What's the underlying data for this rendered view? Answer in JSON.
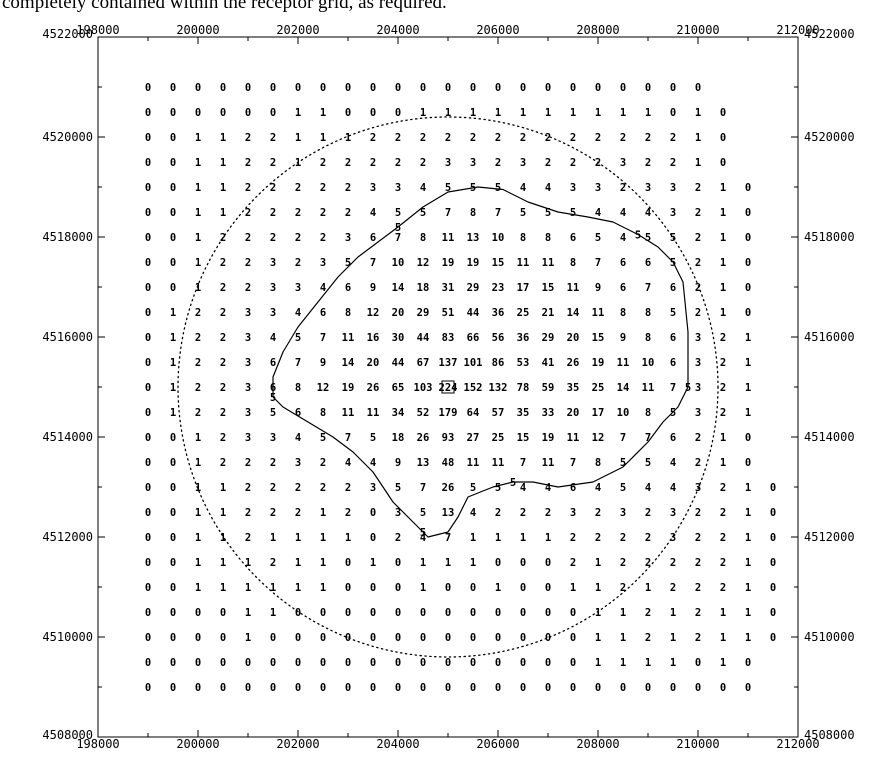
{
  "caption": "completely contained within the receptor grid, as required.",
  "chart_data": {
    "type": "heatmap",
    "title": "",
    "xlabel": "",
    "ylabel": "",
    "xlim": [
      198000,
      212000
    ],
    "ylim": [
      4508000,
      4522000
    ],
    "grid": false,
    "x_ticks": [
      198000,
      200000,
      202000,
      204000,
      206000,
      208000,
      210000,
      212000
    ],
    "x_tick_labels": [
      "198000",
      "200000",
      "202000",
      "204000",
      "206000",
      "208000",
      "210000",
      "212000"
    ],
    "y_ticks": [
      4508000,
      4510000,
      4512000,
      4514000,
      4516000,
      4518000,
      4520000,
      4522000
    ],
    "y_tick_labels": [
      "4508000",
      "4510000",
      "4512000",
      "4514000",
      "4516000",
      "4518000",
      "4520000",
      "4522000"
    ],
    "grid_x_start": 199000,
    "grid_y_start": 4521000,
    "grid_spacing": 500,
    "values": [
      [
        "0",
        "0",
        "0",
        "0",
        "0",
        "0",
        "0",
        "0",
        "0",
        "0",
        "0",
        "0",
        "0",
        "0",
        "0",
        "0",
        "0",
        "0",
        "0",
        "0",
        "0",
        "0",
        "0"
      ],
      [
        "0",
        "0",
        "0",
        "0",
        "0",
        "0",
        "1",
        "1",
        "0",
        "0",
        "0",
        "1",
        "1",
        "1",
        "1",
        "1",
        "1",
        "1",
        "1",
        "1",
        "1",
        "0",
        "1",
        "0"
      ],
      [
        "0",
        "0",
        "1",
        "1",
        "2",
        "2",
        "1",
        "1",
        "1",
        "2",
        "2",
        "2",
        "2",
        "2",
        "2",
        "2",
        "2",
        "2",
        "2",
        "2",
        "2",
        "2",
        "1",
        "0"
      ],
      [
        "0",
        "0",
        "1",
        "1",
        "2",
        "2",
        "1",
        "2",
        "2",
        "2",
        "2",
        "2",
        "3",
        "3",
        "2",
        "3",
        "2",
        "2",
        "2",
        "3",
        "2",
        "2",
        "1",
        "0"
      ],
      [
        "0",
        "0",
        "1",
        "1",
        "2",
        "2",
        "2",
        "2",
        "2",
        "3",
        "3",
        "4",
        "5",
        "5",
        "5",
        "4",
        "4",
        "3",
        "3",
        "2",
        "3",
        "3",
        "2",
        "1",
        "0"
      ],
      [
        "0",
        "0",
        "1",
        "1",
        "2",
        "2",
        "2",
        "2",
        "2",
        "4",
        "5",
        "5",
        "7",
        "8",
        "7",
        "5",
        "5",
        "5",
        "4",
        "4",
        "4",
        "3",
        "2",
        "1",
        "0"
      ],
      [
        "0",
        "0",
        "1",
        "2",
        "2",
        "2",
        "2",
        "2",
        "3",
        "6",
        "7",
        "8",
        "11",
        "13",
        "10",
        "8",
        "8",
        "6",
        "5",
        "4",
        "5",
        "5",
        "2",
        "1",
        "0"
      ],
      [
        "0",
        "0",
        "1",
        "2",
        "2",
        "3",
        "2",
        "3",
        "5",
        "7",
        "10",
        "12",
        "19",
        "19",
        "15",
        "11",
        "11",
        "8",
        "7",
        "6",
        "6",
        "5",
        "2",
        "1",
        "0"
      ],
      [
        "0",
        "0",
        "1",
        "2",
        "2",
        "3",
        "3",
        "4",
        "6",
        "9",
        "14",
        "18",
        "31",
        "29",
        "23",
        "17",
        "15",
        "11",
        "9",
        "6",
        "7",
        "6",
        "2",
        "1",
        "0"
      ],
      [
        "0",
        "1",
        "2",
        "2",
        "3",
        "3",
        "4",
        "6",
        "8",
        "12",
        "20",
        "29",
        "51",
        "44",
        "36",
        "25",
        "21",
        "14",
        "11",
        "8",
        "8",
        "5",
        "2",
        "1",
        "0"
      ],
      [
        "0",
        "1",
        "2",
        "2",
        "3",
        "4",
        "5",
        "7",
        "11",
        "16",
        "30",
        "44",
        "83",
        "66",
        "56",
        "36",
        "29",
        "20",
        "15",
        "9",
        "8",
        "6",
        "3",
        "2",
        "1"
      ],
      [
        "0",
        "1",
        "2",
        "2",
        "3",
        "6",
        "7",
        "9",
        "14",
        "20",
        "44",
        "67",
        "137",
        "101",
        "86",
        "53",
        "41",
        "26",
        "19",
        "11",
        "10",
        "6",
        "3",
        "2",
        "1"
      ],
      [
        "0",
        "1",
        "2",
        "2",
        "3",
        "6",
        "8",
        "12",
        "19",
        "26",
        "65",
        "103",
        "224",
        "152",
        "132",
        "78",
        "59",
        "35",
        "25",
        "14",
        "11",
        "7",
        "3",
        "2",
        "1"
      ],
      [
        "0",
        "1",
        "2",
        "2",
        "3",
        "5",
        "6",
        "8",
        "11",
        "11",
        "34",
        "52",
        "179",
        "64",
        "57",
        "35",
        "33",
        "20",
        "17",
        "10",
        "8",
        "5",
        "3",
        "2",
        "1"
      ],
      [
        "0",
        "0",
        "1",
        "2",
        "3",
        "3",
        "4",
        "5",
        "7",
        "5",
        "18",
        "26",
        "93",
        "27",
        "25",
        "15",
        "19",
        "11",
        "12",
        "7",
        "7",
        "6",
        "2",
        "1",
        "0"
      ],
      [
        "0",
        "0",
        "1",
        "2",
        "2",
        "2",
        "3",
        "2",
        "4",
        "4",
        "9",
        "13",
        "48",
        "11",
        "11",
        "7",
        "11",
        "7",
        "8",
        "5",
        "5",
        "4",
        "2",
        "1",
        "0"
      ],
      [
        "0",
        "0",
        "1",
        "1",
        "2",
        "2",
        "2",
        "2",
        "2",
        "3",
        "5",
        "7",
        "26",
        "5",
        "5",
        "4",
        "4",
        "6",
        "4",
        "5",
        "4",
        "4",
        "3",
        "2",
        "1",
        "0"
      ],
      [
        "0",
        "0",
        "1",
        "1",
        "2",
        "2",
        "2",
        "1",
        "2",
        "0",
        "3",
        "5",
        "13",
        "4",
        "2",
        "2",
        "2",
        "3",
        "2",
        "3",
        "2",
        "3",
        "2",
        "2",
        "1",
        "0"
      ],
      [
        "0",
        "0",
        "1",
        "1",
        "2",
        "1",
        "1",
        "1",
        "1",
        "0",
        "2",
        "4",
        "7",
        "1",
        "1",
        "1",
        "1",
        "2",
        "2",
        "2",
        "2",
        "3",
        "2",
        "2",
        "1",
        "0"
      ],
      [
        "0",
        "0",
        "1",
        "1",
        "1",
        "2",
        "1",
        "1",
        "0",
        "1",
        "0",
        "1",
        "1",
        "1",
        "0",
        "0",
        "0",
        "2",
        "1",
        "2",
        "2",
        "2",
        "2",
        "2",
        "1",
        "0"
      ],
      [
        "0",
        "0",
        "1",
        "1",
        "1",
        "1",
        "1",
        "1",
        "0",
        "0",
        "0",
        "1",
        "0",
        "0",
        "1",
        "0",
        "0",
        "1",
        "1",
        "2",
        "1",
        "2",
        "2",
        "2",
        "1",
        "0"
      ],
      [
        "0",
        "0",
        "0",
        "0",
        "1",
        "1",
        "0",
        "0",
        "0",
        "0",
        "0",
        "0",
        "0",
        "0",
        "0",
        "0",
        "0",
        "0",
        "1",
        "1",
        "2",
        "1",
        "2",
        "1",
        "1",
        "0"
      ],
      [
        "0",
        "0",
        "0",
        "0",
        "1",
        "0",
        "0",
        "0",
        "0",
        "0",
        "0",
        "0",
        "0",
        "0",
        "0",
        "0",
        "0",
        "0",
        "1",
        "1",
        "2",
        "1",
        "2",
        "1",
        "1",
        "0"
      ],
      [
        "0",
        "0",
        "0",
        "0",
        "0",
        "0",
        "0",
        "0",
        "0",
        "0",
        "0",
        "0",
        "0",
        "0",
        "0",
        "0",
        "0",
        "0",
        "1",
        "1",
        "1",
        "1",
        "0",
        "1",
        "0"
      ],
      [
        "0",
        "0",
        "0",
        "0",
        "0",
        "0",
        "0",
        "0",
        "0",
        "0",
        "0",
        "0",
        "0",
        "0",
        "0",
        "0",
        "0",
        "0",
        "0",
        "0",
        "0",
        "0",
        "0",
        "0",
        "0"
      ]
    ],
    "contour": {
      "level_label": "5",
      "label_positions": [
        [
          204000,
          4518200
        ],
        [
          208800,
          4518050
        ],
        [
          209800,
          4515000
        ],
        [
          201500,
          4514800
        ],
        [
          206300,
          4513100
        ],
        [
          204500,
          4512100
        ]
      ],
      "path": [
        [
          204000,
          4518200
        ],
        [
          204500,
          4518600
        ],
        [
          205000,
          4518900
        ],
        [
          205600,
          4519000
        ],
        [
          206100,
          4518950
        ],
        [
          206600,
          4518700
        ],
        [
          207200,
          4518500
        ],
        [
          207800,
          4518400
        ],
        [
          208300,
          4518300
        ],
        [
          208800,
          4518050
        ],
        [
          209200,
          4517800
        ],
        [
          209500,
          4517500
        ],
        [
          209700,
          4517100
        ],
        [
          209750,
          4516600
        ],
        [
          209800,
          4516100
        ],
        [
          209800,
          4515600
        ],
        [
          209800,
          4515000
        ],
        [
          209600,
          4514600
        ],
        [
          209300,
          4514300
        ],
        [
          209000,
          4513900
        ],
        [
          208500,
          4513400
        ],
        [
          207900,
          4513100
        ],
        [
          207200,
          4513000
        ],
        [
          206700,
          4513100
        ],
        [
          206300,
          4513100
        ],
        [
          205900,
          4513000
        ],
        [
          205400,
          4512800
        ],
        [
          205200,
          4512400
        ],
        [
          205000,
          4512100
        ],
        [
          204600,
          4512000
        ],
        [
          204300,
          4512300
        ],
        [
          203900,
          4512700
        ],
        [
          203500,
          4513300
        ],
        [
          203100,
          4513700
        ],
        [
          202700,
          4514000
        ],
        [
          202200,
          4514300
        ],
        [
          201700,
          4514600
        ],
        [
          201500,
          4514800
        ],
        [
          201500,
          4515200
        ],
        [
          201700,
          4515700
        ],
        [
          202000,
          4516200
        ],
        [
          202400,
          4516700
        ],
        [
          202800,
          4517200
        ],
        [
          203200,
          4517600
        ],
        [
          203600,
          4517900
        ],
        [
          204000,
          4518200
        ]
      ]
    },
    "circle": {
      "center": [
        205000,
        4515000
      ],
      "radius": 5400,
      "style": "dotted"
    },
    "source_markers": [
      [
        205000,
        4515000
      ]
    ]
  }
}
